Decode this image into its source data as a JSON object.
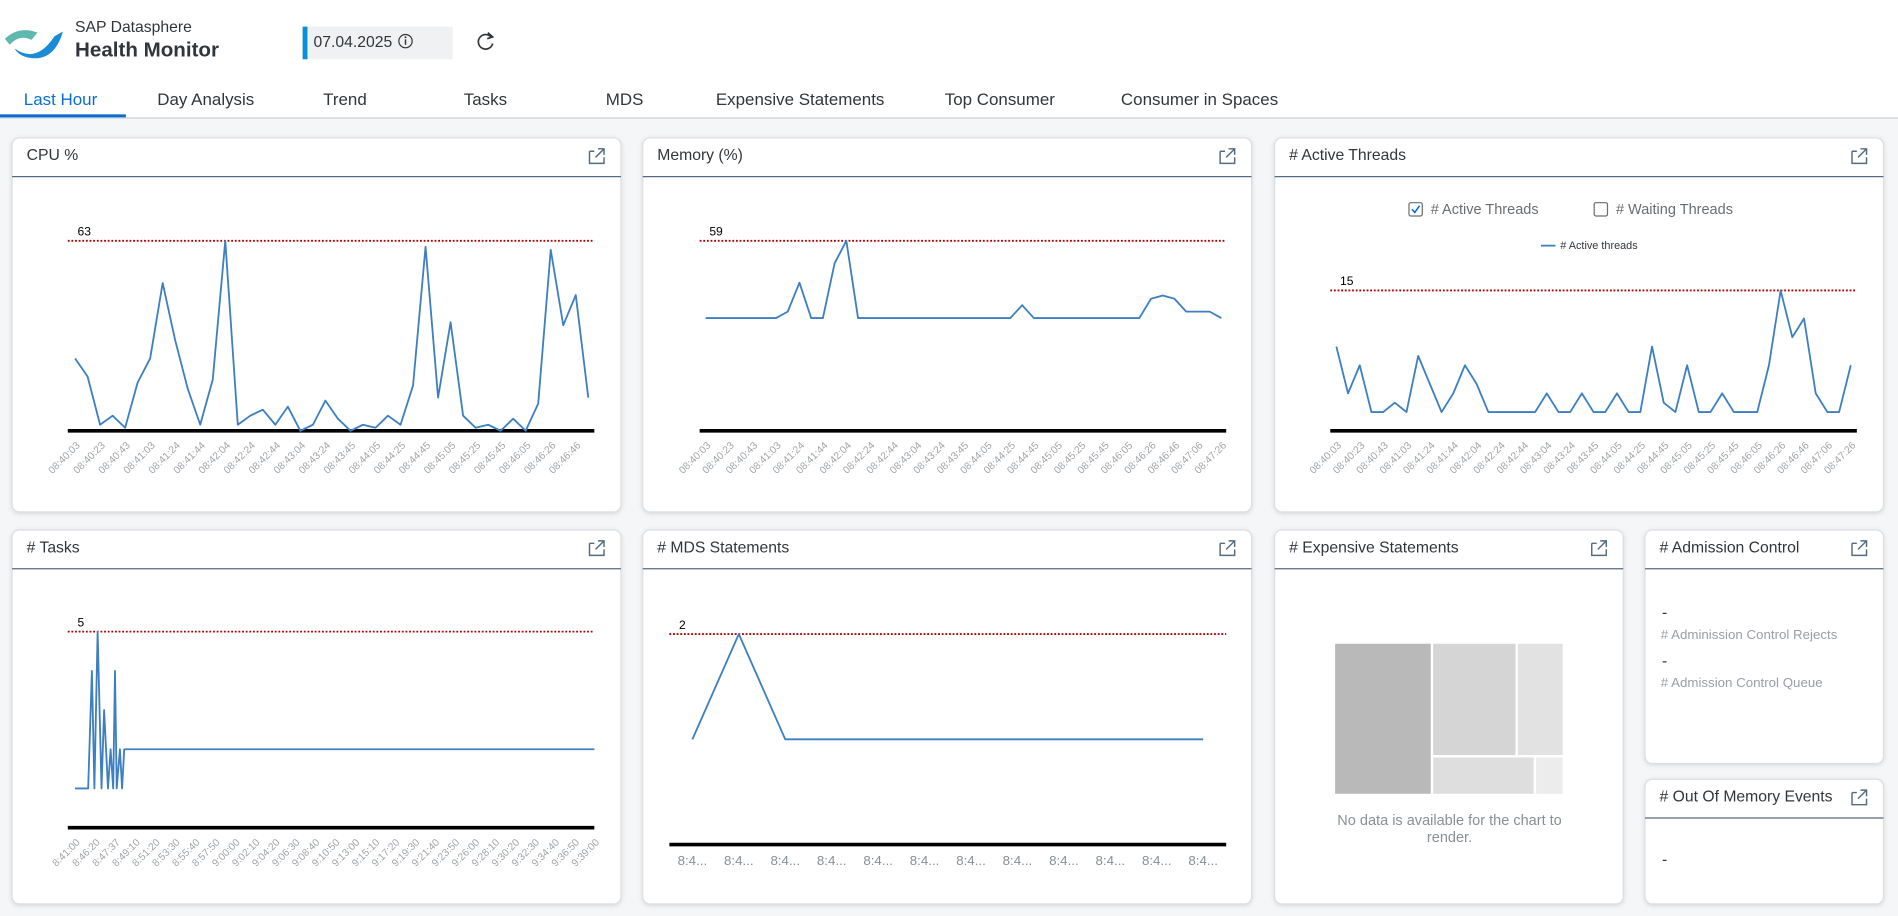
{
  "header": {
    "product": "SAP Datasphere",
    "title": "Health Monitor",
    "date": "07.04.2025"
  },
  "tabs": [
    "Last Hour",
    "Day Analysis",
    "Trend",
    "Tasks",
    "MDS",
    "Expensive Statements",
    "Top Consumer",
    "Consumer in Spaces"
  ],
  "selected_tab": 0,
  "chart_data": [
    {
      "type": "line",
      "title": "CPU %",
      "categories": [
        "08:40:03",
        null,
        "08:40:23",
        null,
        "08:40:43",
        null,
        "08:41:03",
        null,
        "08:41:24",
        null,
        "08:41:44",
        null,
        "08:42:04",
        null,
        "08:42:24",
        null,
        "08:42:44",
        null,
        "08:43:04",
        null,
        "08:43:24",
        null,
        "08:43:45",
        null,
        "08:44:05",
        null,
        "08:44:25",
        null,
        "08:44:45",
        null,
        "08:45:05",
        null,
        "08:45:25",
        null,
        "08:45:45",
        null,
        "08:46:05",
        null,
        "08:46:26",
        null,
        "08:46:46",
        null
      ],
      "series": [
        {
          "color": "#3d7fc1",
          "values": [
            24,
            18,
            2,
            5,
            1,
            16,
            24,
            49,
            30,
            14,
            2,
            17,
            63,
            2,
            5,
            7,
            2,
            8,
            0,
            2,
            10,
            4,
            0,
            2,
            1,
            5,
            2,
            15,
            61,
            11,
            36,
            5,
            1,
            2,
            0,
            4,
            0,
            9,
            60,
            35,
            45,
            11
          ]
        }
      ],
      "ylim": [
        0,
        63
      ],
      "threshold": 63,
      "threshold_color": "#b00000"
    },
    {
      "type": "line",
      "title": "Memory (%)",
      "categories": [
        "08:40:03",
        null,
        "08:40:23",
        null,
        "08:40:43",
        null,
        "08:41:03",
        null,
        "08:41:24",
        null,
        "08:41:44",
        null,
        "08:42:04",
        null,
        "08:42:24",
        null,
        "08:42:44",
        null,
        "08:43:04",
        null,
        "08:43:24",
        null,
        "08:43:45",
        null,
        "08:44:05",
        null,
        "08:44:25",
        null,
        "08:44:45",
        null,
        "08:45:05",
        null,
        "08:45:25",
        null,
        "08:45:45",
        null,
        "08:46:05",
        null,
        "08:46:26",
        null,
        "08:46:46",
        null,
        "08:47:06",
        null,
        "08:47:26"
      ],
      "series": [
        {
          "color": "#3d7fc1",
          "values": [
            35,
            35,
            35,
            35,
            35,
            35,
            35,
            37,
            46,
            35,
            35,
            52,
            59,
            35,
            35,
            35,
            35,
            35,
            35,
            35,
            35,
            35,
            35,
            35,
            35,
            35,
            35,
            39,
            35,
            35,
            35,
            35,
            35,
            35,
            35,
            35,
            35,
            35,
            41,
            42,
            41,
            37,
            37,
            37,
            35
          ]
        }
      ],
      "ylim": [
        0,
        59
      ],
      "threshold": 59,
      "threshold_color": "#b00000"
    },
    {
      "type": "line",
      "title": "# Active Threads",
      "filters": [
        {
          "label": "# Active Threads",
          "checked": true
        },
        {
          "label": "# Waiting Threads",
          "checked": false
        }
      ],
      "categories": [
        "08:40:03",
        null,
        "08:40:23",
        null,
        "08:40:43",
        null,
        "08:41:03",
        null,
        "08:41:24",
        null,
        "08:41:44",
        null,
        "08:42:04",
        null,
        "08:42:24",
        null,
        "08:42:44",
        null,
        "08:43:04",
        null,
        "08:43:24",
        null,
        "08:43:45",
        null,
        "08:44:05",
        null,
        "08:44:25",
        null,
        "08:44:45",
        null,
        "08:45:05",
        null,
        "08:45:25",
        null,
        "08:45:45",
        null,
        "08:46:05",
        null,
        "08:46:26",
        null,
        "08:46:46",
        null,
        "08:47:06",
        null,
        "08:47:26"
      ],
      "series": [
        {
          "name": "# Active threads",
          "color": "#3d7fc1",
          "values": [
            9,
            4,
            7,
            2,
            2,
            3,
            2,
            8,
            5,
            2,
            4,
            7,
            5,
            2,
            2,
            2,
            2,
            2,
            4,
            2,
            2,
            4,
            2,
            2,
            4,
            2,
            2,
            9,
            3,
            2,
            7,
            2,
            2,
            4,
            2,
            2,
            2,
            7,
            15,
            10,
            12,
            4,
            2,
            2,
            7
          ]
        }
      ],
      "ylim": [
        0,
        15
      ],
      "threshold": 15,
      "threshold_color": "#b00000"
    },
    {
      "type": "line",
      "title": "# Tasks",
      "categories": [
        "8:41:00",
        "8:46:20",
        "8:47:37",
        "8:49:10",
        "8:51:20",
        "8:53:30",
        "8:55:40",
        "8:57:50",
        "9:00:00",
        "9:02:10",
        "9:04:20",
        "9:06:30",
        "9:08:40",
        "9:10:50",
        "9:13:00",
        "9:15:10",
        "9:17:20",
        "9:19:30",
        "9:21:40",
        "9:23:50",
        "9:26:00",
        "9:28:10",
        "9:30:20",
        "9:32:30",
        "9:34:40",
        "9:36:50",
        "9:39:00"
      ],
      "x": [
        "8:41:00",
        "8:44:30",
        "8:45:30",
        "8:46:10",
        "8:46:30",
        "8:46:45",
        "8:46:55",
        "8:47:10",
        "8:47:20",
        "8:47:30",
        "8:47:37",
        "8:47:45",
        "8:48:00",
        "8:48:10",
        "8:48:20",
        "9:39:00"
      ],
      "series": [
        {
          "color": "#3d7fc1",
          "values": [
            1,
            1,
            4,
            1,
            5,
            1,
            3,
            1,
            2,
            1,
            4,
            1,
            2,
            1,
            2,
            2
          ]
        }
      ],
      "ylim": [
        0,
        5
      ],
      "threshold": 5,
      "threshold_color": "#b00000"
    },
    {
      "type": "line",
      "title": "# MDS Statements",
      "categories": [
        "8:4...",
        "8:4...",
        "8:4...",
        "8:4...",
        "8:4...",
        "8:4...",
        "8:4...",
        "8:4...",
        "8:4...",
        "8:4...",
        "8:4...",
        "8:4..."
      ],
      "series": [
        {
          "color": "#3d7fc1",
          "values": [
            1,
            2,
            1,
            1,
            1,
            1,
            1,
            1,
            1,
            1,
            1,
            1
          ]
        }
      ],
      "ylim": [
        0,
        2
      ],
      "threshold": 2,
      "threshold_color": "#b00000"
    }
  ],
  "expensive_statements": {
    "title": "# Expensive Statements",
    "message": "No data is available for the chart to render."
  },
  "admission_control": {
    "title": "# Admission Control",
    "items": [
      {
        "value": "-",
        "label": "# Adminission Control Rejects"
      },
      {
        "value": "-",
        "label": "# Admission Control Queue"
      }
    ]
  },
  "out_of_memory": {
    "title": "# Out Of Memory Events",
    "value": "-"
  }
}
